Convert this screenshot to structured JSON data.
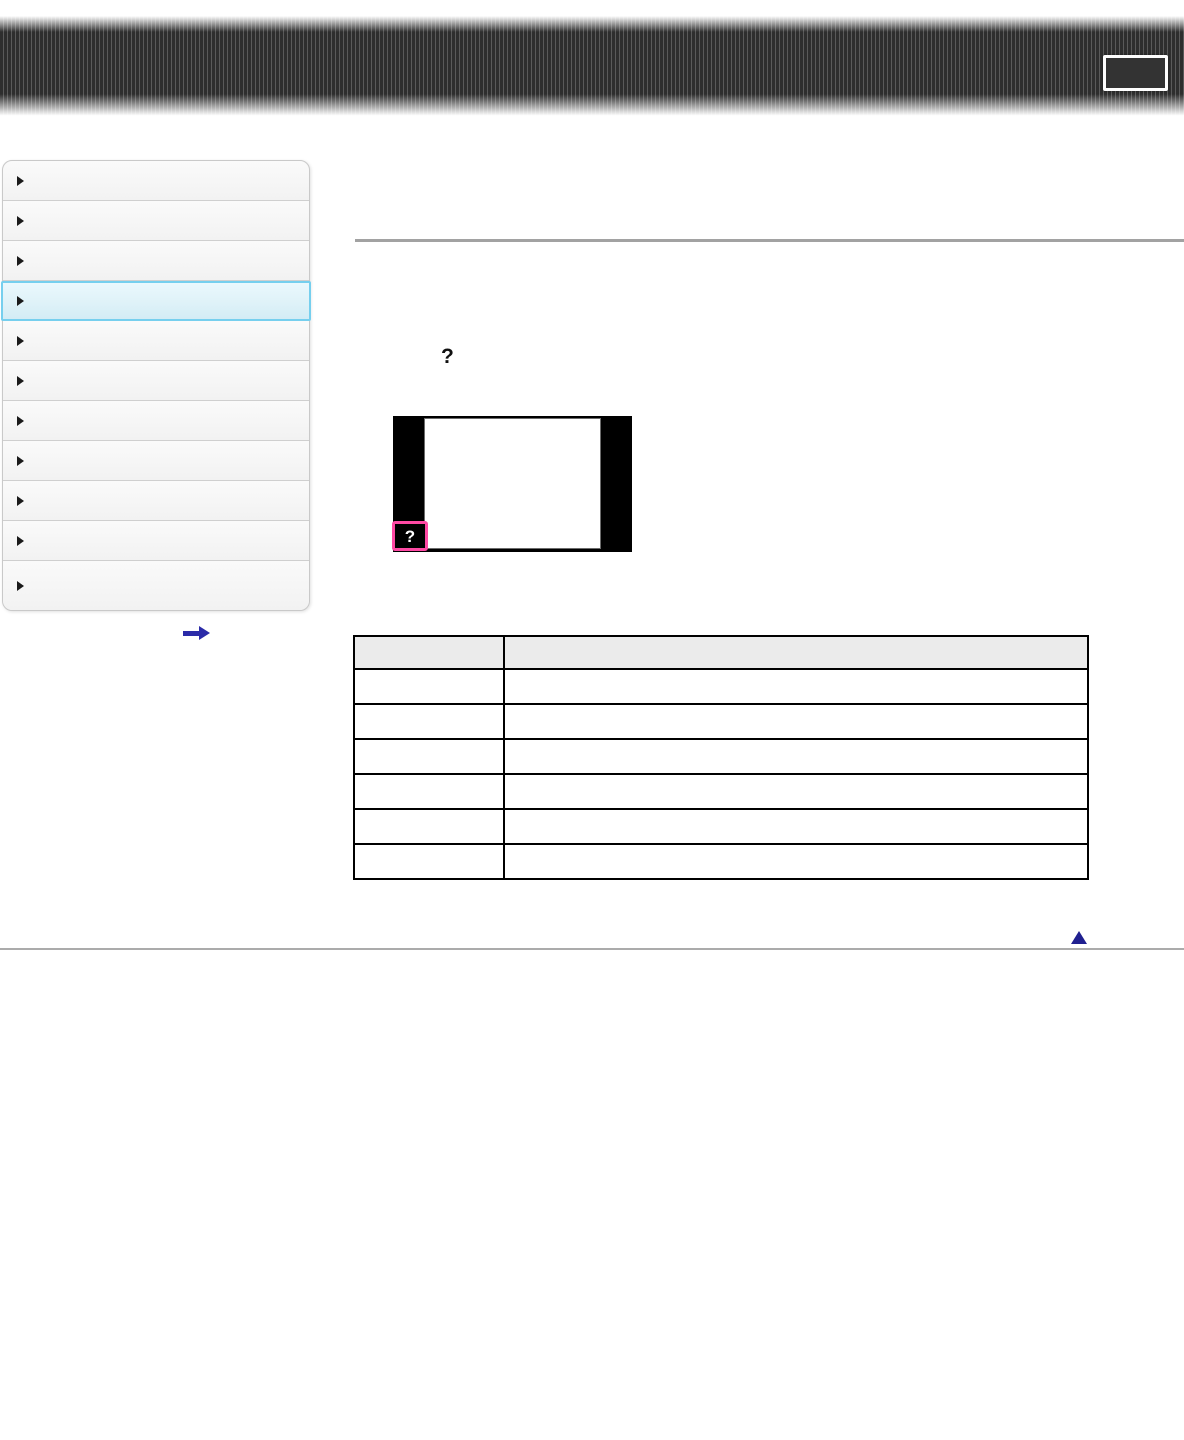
{
  "header": {
    "print_button": {
      "label": ""
    }
  },
  "sidebar": {
    "active_index": 3,
    "items": [
      {
        "label": ""
      },
      {
        "label": ""
      },
      {
        "label": ""
      },
      {
        "label": ""
      },
      {
        "label": ""
      },
      {
        "label": ""
      },
      {
        "label": ""
      },
      {
        "label": ""
      },
      {
        "label": ""
      },
      {
        "label": ""
      },
      {
        "label": ""
      }
    ]
  },
  "content": {
    "page_title": "",
    "step_help_glyph": "?",
    "screen_illustration": {
      "help_icon_glyph": "?"
    },
    "table": {
      "columns": [
        "",
        ""
      ],
      "rows": [
        [
          "",
          ""
        ],
        [
          "",
          ""
        ],
        [
          "",
          ""
        ],
        [
          "",
          ""
        ],
        [
          "",
          ""
        ],
        [
          "",
          ""
        ]
      ]
    }
  },
  "icons": {
    "sidebar_bullet": "right-triangle",
    "next_arrow": "right-arrow",
    "back_to_top": "up-triangle"
  },
  "colors": {
    "accent_cyan": "#76cfee",
    "highlight_pink": "#ff49a4",
    "nav_arrow_blue": "#2b2ba8",
    "top_arrow_navy": "#202090",
    "table_header_bg": "#ebebeb"
  }
}
